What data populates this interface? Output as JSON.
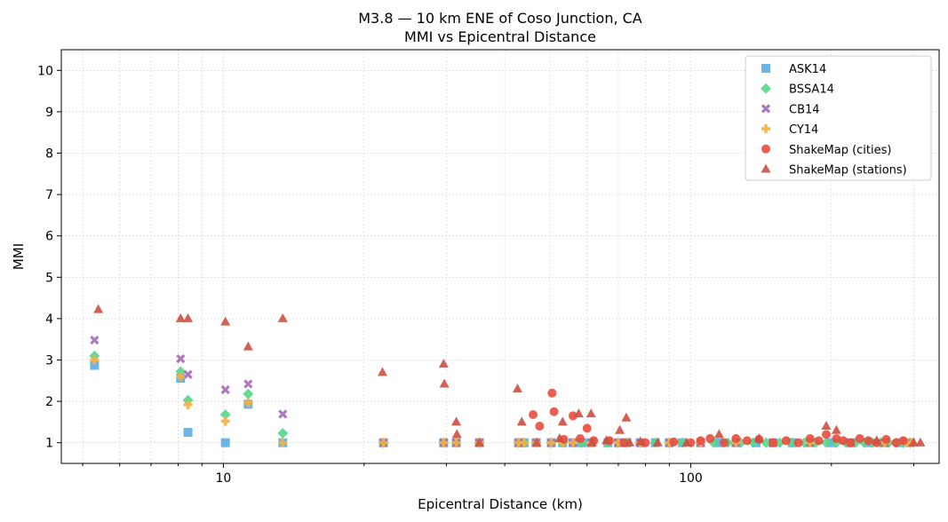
{
  "chart_data": {
    "type": "scatter",
    "title": "M3.8 — 10 km ENE of Coso Junction, CA",
    "subtitle": "MMI vs Epicentral Distance",
    "xlabel": "Epicentral Distance (km)",
    "ylabel": "MMI",
    "xscale": "log",
    "xlim": [
      4.5,
      340
    ],
    "ylim": [
      0.5,
      10.5
    ],
    "xticks": [
      10,
      100
    ],
    "xtick_labels": [
      "10",
      "100"
    ],
    "yticks": [
      1,
      2,
      3,
      4,
      5,
      6,
      7,
      8,
      9,
      10
    ],
    "grid": true,
    "legend_position": "top-right",
    "series": [
      {
        "name": "ASK14",
        "marker": "square",
        "color": "#5DADE2",
        "points": [
          [
            5.3,
            2.87
          ],
          [
            8.1,
            2.56
          ],
          [
            8.4,
            1.25
          ],
          [
            10.1,
            1.0
          ],
          [
            11.3,
            1.93
          ],
          [
            13.4,
            1.0
          ],
          [
            22,
            1.0
          ],
          [
            29.6,
            1.0
          ],
          [
            31.5,
            1.0
          ],
          [
            35.3,
            1.0
          ],
          [
            42.8,
            1.0
          ],
          [
            44,
            1.0
          ],
          [
            46.7,
            1.0
          ],
          [
            50.3,
            1.0
          ],
          [
            53.2,
            1.0
          ],
          [
            56,
            1.0
          ],
          [
            58.5,
            1.0
          ],
          [
            61.2,
            1.0
          ],
          [
            66.5,
            1.0
          ],
          [
            70,
            1.0
          ],
          [
            73,
            1.0
          ],
          [
            78,
            1.0
          ],
          [
            84,
            1.0
          ],
          [
            90,
            1.0
          ],
          [
            96,
            1.0
          ],
          [
            105,
            1.0
          ],
          [
            115,
            1.0
          ],
          [
            125,
            1.0
          ],
          [
            138,
            1.0
          ],
          [
            150,
            1.0
          ],
          [
            165,
            1.0
          ],
          [
            180,
            1.0
          ],
          [
            200,
            1.0
          ],
          [
            220,
            1.0
          ],
          [
            240,
            1.0
          ],
          [
            260,
            1.0
          ],
          [
            280,
            1.0
          ],
          [
            295,
            1.0
          ]
        ]
      },
      {
        "name": "BSSA14",
        "marker": "diamond",
        "color": "#58D68D",
        "points": [
          [
            5.3,
            3.1
          ],
          [
            8.1,
            2.72
          ],
          [
            8.4,
            2.03
          ],
          [
            10.1,
            1.68
          ],
          [
            11.3,
            2.18
          ],
          [
            13.4,
            1.23
          ],
          [
            22,
            1.0
          ],
          [
            29.6,
            1.0
          ],
          [
            31.5,
            1.0
          ],
          [
            35.3,
            1.0
          ],
          [
            42.8,
            1.0
          ],
          [
            44,
            1.0
          ],
          [
            46.7,
            1.0
          ],
          [
            50.3,
            1.0
          ],
          [
            53.2,
            1.0
          ],
          [
            56,
            1.0
          ],
          [
            58.5,
            1.0
          ],
          [
            61.2,
            1.0
          ],
          [
            66.5,
            1.0
          ],
          [
            70,
            1.0
          ],
          [
            73,
            1.0
          ],
          [
            78,
            1.0
          ],
          [
            84,
            1.0
          ],
          [
            90,
            1.0
          ],
          [
            96,
            1.0
          ],
          [
            105,
            1.0
          ],
          [
            112,
            1.0
          ],
          [
            120,
            1.0
          ],
          [
            128,
            1.0
          ],
          [
            136,
            1.0
          ],
          [
            145,
            1.0
          ],
          [
            155,
            1.0
          ],
          [
            165,
            1.0
          ],
          [
            175,
            1.0
          ],
          [
            185,
            1.0
          ],
          [
            195,
            1.0
          ],
          [
            205,
            1.0
          ],
          [
            215,
            1.0
          ],
          [
            225,
            1.0
          ],
          [
            235,
            1.0
          ],
          [
            245,
            1.0
          ],
          [
            255,
            1.0
          ],
          [
            265,
            1.0
          ],
          [
            275,
            1.0
          ],
          [
            285,
            1.0
          ],
          [
            295,
            1.0
          ]
        ]
      },
      {
        "name": "CB14",
        "marker": "x",
        "color": "#A569BD",
        "points": [
          [
            5.3,
            3.48
          ],
          [
            8.1,
            3.03
          ],
          [
            8.4,
            2.65
          ],
          [
            10.1,
            2.28
          ],
          [
            11.3,
            2.42
          ],
          [
            13.4,
            1.69
          ],
          [
            22,
            1.0
          ],
          [
            29.6,
            1.0
          ],
          [
            31.5,
            1.0
          ],
          [
            35.3,
            1.0
          ],
          [
            42.8,
            1.0
          ],
          [
            46.7,
            1.0
          ],
          [
            50.3,
            1.0
          ],
          [
            56,
            1.0
          ],
          [
            61.2,
            1.0
          ],
          [
            70,
            1.0
          ],
          [
            78,
            1.0
          ],
          [
            90,
            1.0
          ],
          [
            105,
            1.0
          ],
          [
            125,
            1.0
          ],
          [
            150,
            1.0
          ],
          [
            180,
            1.0
          ],
          [
            220,
            1.0
          ],
          [
            260,
            1.0
          ],
          [
            295,
            1.0
          ]
        ]
      },
      {
        "name": "CY14",
        "marker": "plus",
        "color": "#F5B041",
        "points": [
          [
            5.3,
            3.0
          ],
          [
            8.1,
            2.6
          ],
          [
            8.4,
            1.92
          ],
          [
            10.1,
            1.52
          ],
          [
            11.3,
            1.97
          ],
          [
            13.4,
            1.0
          ],
          [
            22,
            1.0
          ],
          [
            29.6,
            1.0
          ],
          [
            31.5,
            1.0
          ],
          [
            35.3,
            1.0
          ],
          [
            42.8,
            1.0
          ],
          [
            44,
            1.0
          ],
          [
            46.7,
            1.0
          ],
          [
            50.3,
            1.0
          ],
          [
            53.2,
            1.0
          ],
          [
            56,
            1.0
          ],
          [
            61.2,
            1.0
          ],
          [
            70,
            1.0
          ],
          [
            78,
            1.0
          ],
          [
            90,
            1.0
          ],
          [
            105,
            1.0
          ],
          [
            125,
            1.0
          ],
          [
            150,
            1.0
          ],
          [
            180,
            1.0
          ],
          [
            220,
            1.0
          ],
          [
            260,
            1.0
          ],
          [
            290,
            1.0
          ],
          [
            297,
            1.0
          ]
        ]
      },
      {
        "name": "ShakeMap (cities)",
        "marker": "circle",
        "color": "#E74C3C",
        "points": [
          [
            46,
            1.68
          ],
          [
            47.5,
            1.4
          ],
          [
            50.5,
            2.2
          ],
          [
            51,
            1.75
          ],
          [
            53.5,
            1.08
          ],
          [
            56,
            1.65
          ],
          [
            58,
            1.1
          ],
          [
            60,
            1.35
          ],
          [
            62,
            1.05
          ],
          [
            67,
            1.05
          ],
          [
            72,
            1.0
          ],
          [
            80,
            1.0
          ],
          [
            92,
            1.02
          ],
          [
            100,
            1.0
          ],
          [
            105,
            1.05
          ],
          [
            110,
            1.1
          ],
          [
            118,
            1.0
          ],
          [
            125,
            1.1
          ],
          [
            132,
            1.05
          ],
          [
            140,
            1.08
          ],
          [
            150,
            1.0
          ],
          [
            160,
            1.05
          ],
          [
            170,
            1.0
          ],
          [
            180,
            1.1
          ],
          [
            188,
            1.05
          ],
          [
            195,
            1.2
          ],
          [
            205,
            1.1
          ],
          [
            212,
            1.05
          ],
          [
            220,
            1.0
          ],
          [
            230,
            1.1
          ],
          [
            240,
            1.05
          ],
          [
            250,
            1.0
          ],
          [
            262,
            1.08
          ],
          [
            275,
            1.0
          ],
          [
            285,
            1.05
          ]
        ]
      },
      {
        "name": "ShakeMap (stations)",
        "marker": "triangle",
        "color": "#CD4F41",
        "points": [
          [
            5.4,
            4.22
          ],
          [
            8.1,
            4.0
          ],
          [
            8.4,
            4.0
          ],
          [
            10.1,
            3.92
          ],
          [
            11.3,
            3.32
          ],
          [
            13.4,
            4.0
          ],
          [
            21.9,
            2.7
          ],
          [
            29.6,
            2.9
          ],
          [
            29.7,
            2.42
          ],
          [
            31.5,
            1.5
          ],
          [
            31.6,
            1.2
          ],
          [
            35.3,
            1.0
          ],
          [
            42.6,
            2.3
          ],
          [
            43.5,
            1.5
          ],
          [
            46.8,
            1.0
          ],
          [
            52.4,
            1.1
          ],
          [
            53.2,
            1.5
          ],
          [
            57.6,
            1.7
          ],
          [
            61.2,
            1.7
          ],
          [
            61.5,
            1.0
          ],
          [
            66,
            1.05
          ],
          [
            70.5,
            1.3
          ],
          [
            72.8,
            1.6
          ],
          [
            74,
            1.0
          ],
          [
            78,
            1.02
          ],
          [
            85,
            1.0
          ],
          [
            98,
            1.0
          ],
          [
            115,
            1.2
          ],
          [
            140,
            1.1
          ],
          [
            195,
            1.4
          ],
          [
            205,
            1.3
          ],
          [
            250,
            1.05
          ],
          [
            300,
            1.0
          ],
          [
            310,
            1.0
          ]
        ]
      }
    ]
  }
}
